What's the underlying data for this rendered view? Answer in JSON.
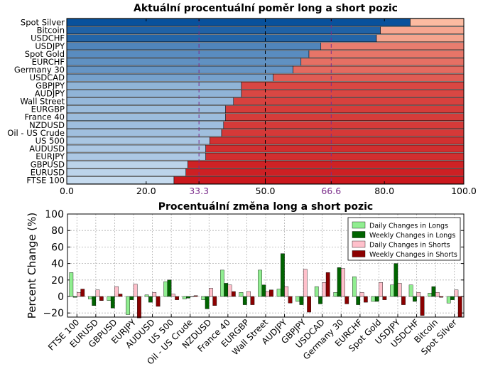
{
  "chart_data": [
    {
      "type": "bar",
      "orientation": "horizontal",
      "stacked": true,
      "title": "Aktuální procentuální poměr long a short pozic",
      "categories": [
        "Spot Silver",
        "Bitcoin",
        "USDCHF",
        "USDJPY",
        "Spot Gold",
        "EURCHF",
        "Germany 30",
        "USDCAD",
        "GBPJPY",
        "AUDJPY",
        "Wall Street",
        "EURGBP",
        "France 40",
        "NZDUSD",
        "Oil - US Crude",
        "US 500",
        "AUDUSD",
        "EURJPY",
        "GBPUSD",
        "EURUSD",
        "FTSE 100"
      ],
      "series": [
        {
          "values": [
            86.5,
            79,
            78,
            64,
            61,
            59,
            57,
            52,
            44,
            44,
            42,
            40,
            40,
            39.5,
            39,
            36,
            35,
            35,
            30.5,
            30,
            27
          ]
        },
        {
          "values": [
            13.5,
            21,
            22,
            36,
            39,
            41,
            43,
            48,
            56,
            56,
            58,
            60,
            60,
            60.5,
            61,
            64,
            65,
            65,
            69.5,
            70,
            73
          ]
        }
      ],
      "xlim": [
        0,
        100
      ],
      "xticks": [
        "0.0",
        "20.0",
        "33.3",
        "50.0",
        "66.6",
        "80.0",
        "100.0"
      ],
      "reference_lines": [
        33.3,
        50.0,
        66.6
      ],
      "colors": {
        "long_dark": "#08519c",
        "long_light": "#c6dbef",
        "short_dark": "#cb181d",
        "short_light": "#fcbba1",
        "reference": "#7b2d8b"
      }
    },
    {
      "type": "bar",
      "title": "Procentuální změna long a short pozic",
      "ylabel": "Percent Change (%)",
      "ylim": [
        -25,
        100
      ],
      "yticks": [
        "100",
        "80",
        "60",
        "40",
        "20",
        "0",
        "−20"
      ],
      "grid": true,
      "legend_position": "top-right",
      "categories": [
        "FTSE 100",
        "EURUSD",
        "GBPUSD",
        "EURJPY",
        "AUDUSD",
        "US 500",
        "Oil - US Crude",
        "NZDUSD",
        "France 40",
        "EURGBP",
        "Wall Street",
        "AUDJPY",
        "GBPJPY",
        "USDCAD",
        "Germany 30",
        "EURCHF",
        "Spot Gold",
        "USDJPY",
        "USDCHF",
        "Bitcoin",
        "Spot Silver"
      ],
      "series": [
        {
          "name": "Daily Changes in Longs",
          "color": "#90ee90",
          "values": [
            29,
            -3,
            -5,
            -22,
            2,
            18,
            -3,
            -4,
            32,
            5,
            32,
            9,
            -6,
            12,
            5,
            24,
            -6,
            14,
            14,
            4,
            -8
          ]
        },
        {
          "name": "Weekly Changes in Longs",
          "color": "#006400",
          "values": [
            -1,
            -11,
            -14,
            -4,
            -7,
            20,
            -2,
            -15,
            16,
            -10,
            14,
            52,
            -10,
            -9,
            35,
            -10,
            -6,
            40,
            -6,
            12,
            -4
          ]
        },
        {
          "name": "Daily Changes in Shorts",
          "color": "#ffc0cb",
          "values": [
            5,
            8,
            12,
            15,
            5,
            3,
            0,
            10,
            14,
            6,
            6,
            12,
            33,
            17,
            34,
            5,
            17,
            16,
            5,
            5,
            8
          ]
        },
        {
          "name": "Weekly Changes in Shorts",
          "color": "#8b0000",
          "values": [
            9,
            -5,
            3,
            -26,
            -12,
            -4,
            1,
            -11,
            6,
            -10,
            8,
            -8,
            -19,
            29,
            -9,
            -7,
            -4,
            -10,
            -23,
            -1,
            -25
          ]
        }
      ]
    }
  ]
}
